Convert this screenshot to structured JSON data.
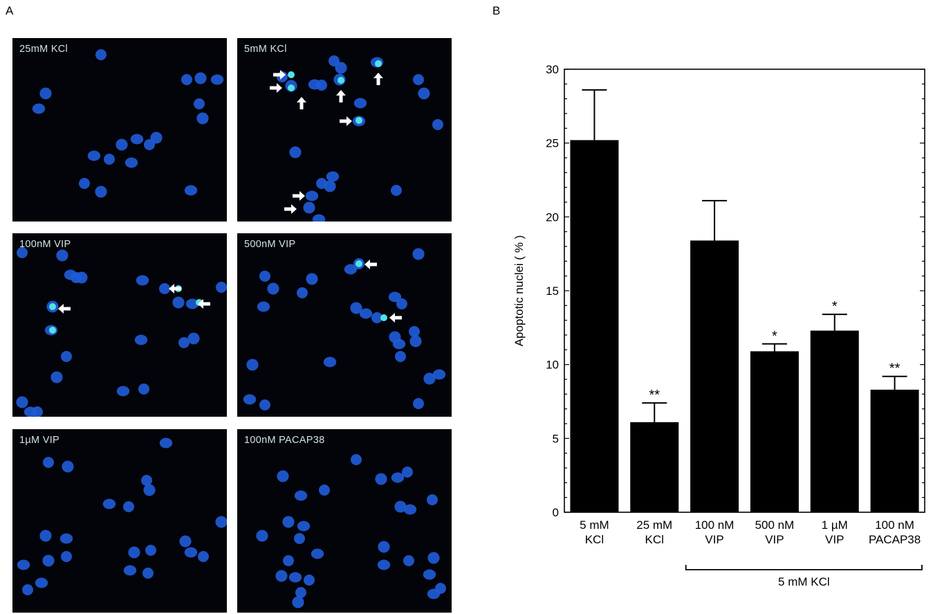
{
  "panel_labels": {
    "a": "A",
    "b": "B"
  },
  "micrographs": [
    {
      "label": "25mM KCl"
    },
    {
      "label": "5mM KCl"
    },
    {
      "label": "100nM VIP"
    },
    {
      "label": "500nM VIP"
    },
    {
      "label": "1µM VIP"
    },
    {
      "label": "100nM PACAP38"
    }
  ],
  "colors": {
    "nucleus": "#1f5bd6",
    "apoptotic": "#4fe3e6",
    "micro_bg": "#03030a",
    "bar": "#000000"
  },
  "chart_data": {
    "type": "bar",
    "categories": [
      [
        "5 mM",
        "KCl"
      ],
      [
        "25 mM",
        "KCl"
      ],
      [
        "100 nM",
        "VIP"
      ],
      [
        "500 nM",
        "VIP"
      ],
      [
        "1 µM",
        "VIP"
      ],
      [
        "100 nM",
        "PACAP38"
      ]
    ],
    "values": [
      25.2,
      6.1,
      18.4,
      10.9,
      12.3,
      8.3
    ],
    "errors": [
      3.4,
      1.3,
      2.7,
      0.5,
      1.1,
      0.9
    ],
    "significance": [
      "",
      "**",
      "",
      "*",
      "*",
      "**"
    ],
    "ylabel": "Apoptotic nuclei ( % )",
    "ylim": [
      0,
      30
    ],
    "yticks": [
      0,
      5,
      10,
      15,
      20,
      25,
      30
    ],
    "group_bracket": {
      "label": "5 mM KCl",
      "from": 2,
      "to": 5
    }
  }
}
